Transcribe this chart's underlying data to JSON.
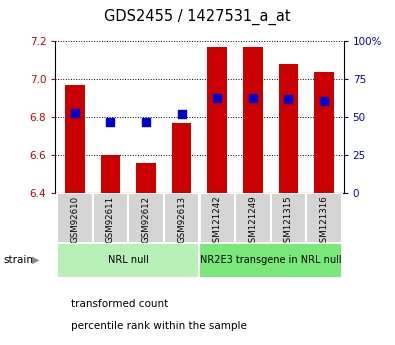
{
  "title": "GDS2455 / 1427531_a_at",
  "samples": [
    "GSM92610",
    "GSM92611",
    "GSM92612",
    "GSM92613",
    "GSM121242",
    "GSM121249",
    "GSM121315",
    "GSM121316"
  ],
  "transformed_counts": [
    6.97,
    6.6,
    6.56,
    6.77,
    7.17,
    7.17,
    7.08,
    7.04
  ],
  "percentile_ranks": [
    53,
    47,
    47,
    52,
    63,
    63,
    62,
    61
  ],
  "ylim_left": [
    6.4,
    7.2
  ],
  "ylim_right": [
    0,
    100
  ],
  "yticks_left": [
    6.4,
    6.6,
    6.8,
    7.0,
    7.2
  ],
  "yticks_right": [
    0,
    25,
    50,
    75,
    100
  ],
  "ytick_labels_right": [
    "0",
    "25",
    "50",
    "75",
    "100%"
  ],
  "groups": [
    {
      "label": "NRL null",
      "start": 0,
      "end": 4,
      "color": "#b8f0b8"
    },
    {
      "label": "NR2E3 transgene in NRL null",
      "start": 4,
      "end": 8,
      "color": "#78e878"
    }
  ],
  "bar_color": "#cc0000",
  "dot_color": "#0000cc",
  "bar_bottom": 6.4,
  "bar_width": 0.55,
  "dot_size": 30,
  "axis_color_left": "#cc0000",
  "axis_color_right": "#0000cc",
  "legend_items": [
    {
      "label": "transformed count",
      "color": "#cc0000"
    },
    {
      "label": "percentile rank within the sample",
      "color": "#0000cc"
    }
  ]
}
